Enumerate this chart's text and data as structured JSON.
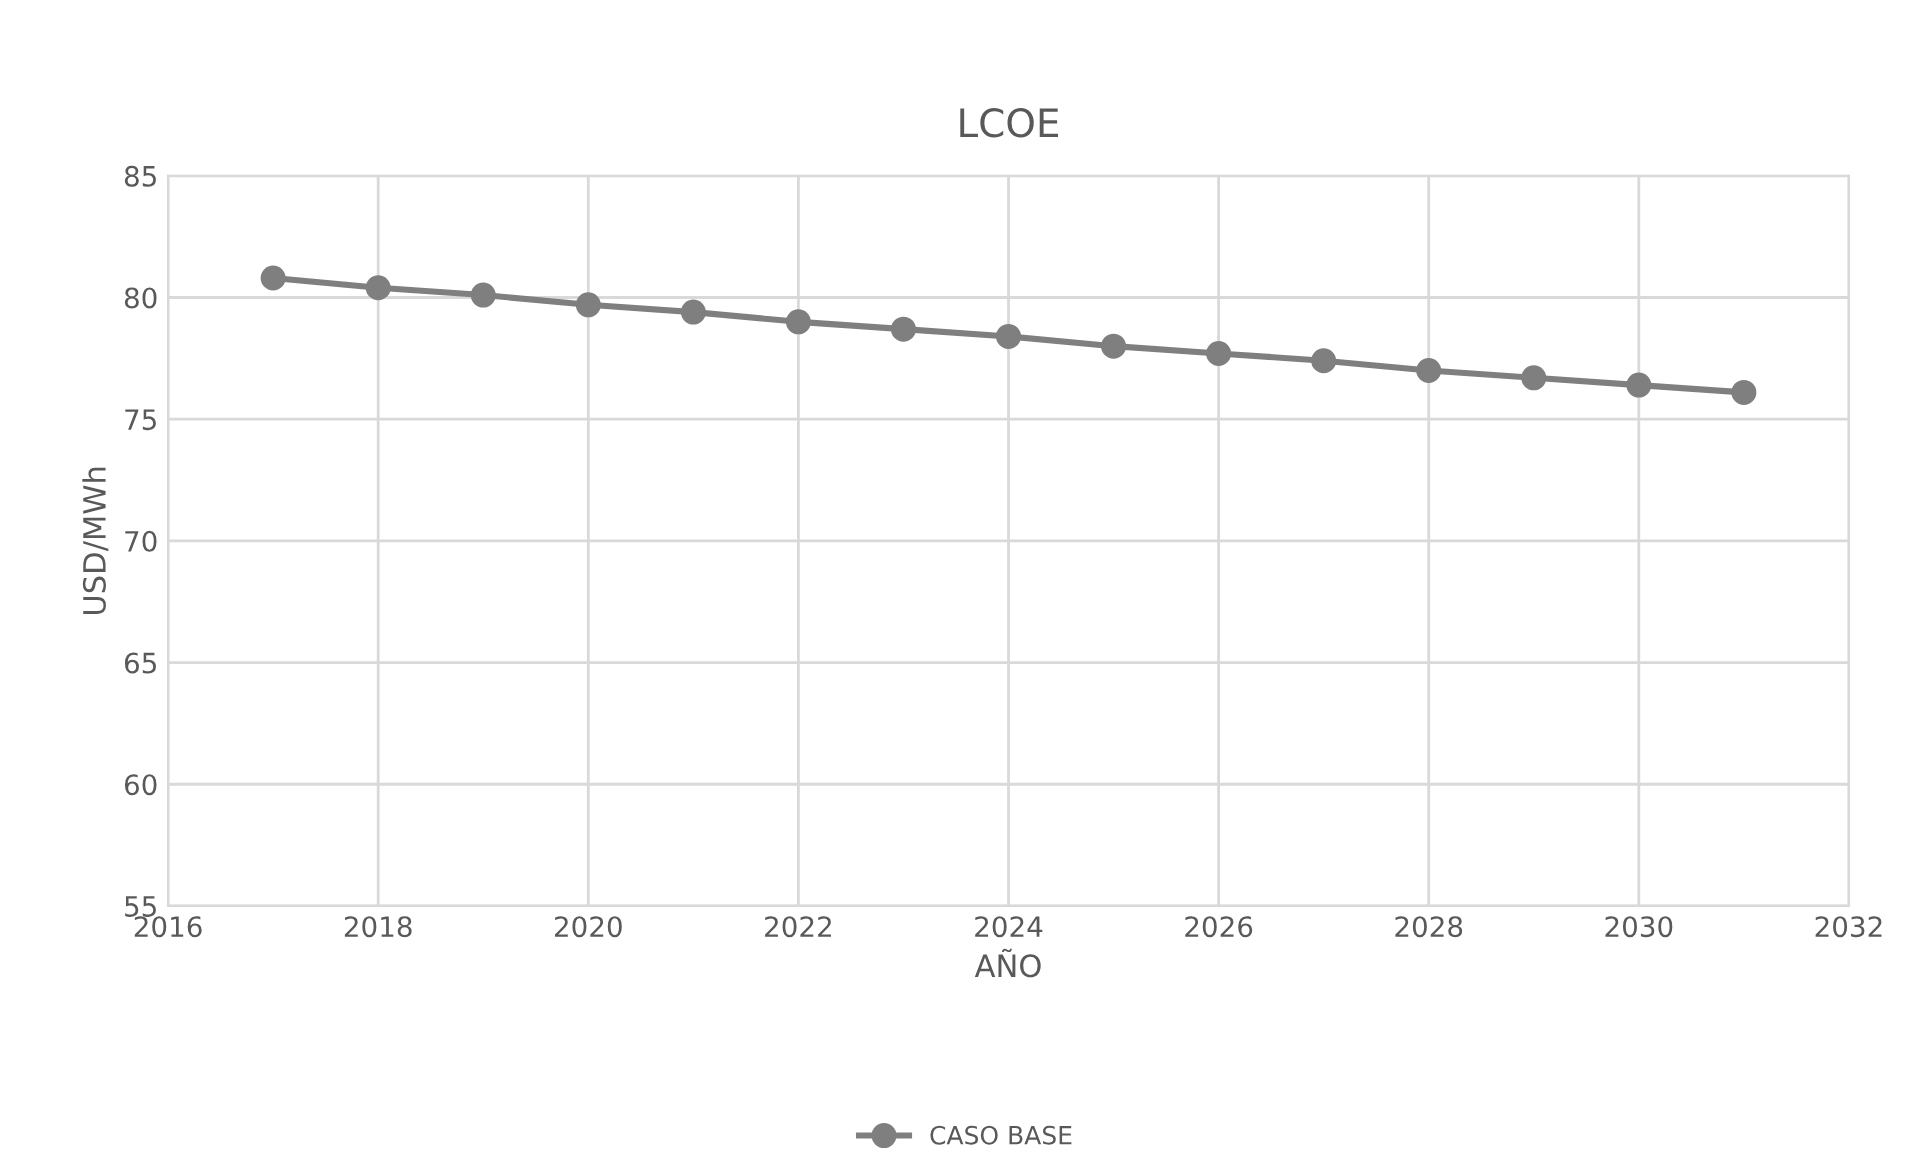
{
  "chart_data": {
    "type": "line",
    "title": "LCOE",
    "xlabel": "AÑO",
    "ylabel": "USD/MWh",
    "x": [
      2017,
      2018,
      2019,
      2020,
      2021,
      2022,
      2023,
      2024,
      2025,
      2026,
      2027,
      2028,
      2029,
      2030,
      2031
    ],
    "series": [
      {
        "name": "CASO BASE",
        "color": "#7f7f7f",
        "values": [
          80.8,
          80.4,
          80.1,
          79.7,
          79.4,
          79.0,
          78.7,
          78.4,
          78.0,
          77.7,
          77.4,
          77.0,
          76.7,
          76.4,
          76.1
        ]
      }
    ],
    "xlim": [
      2016,
      2032
    ],
    "xticks": [
      2016,
      2018,
      2020,
      2022,
      2024,
      2026,
      2028,
      2030,
      2032
    ],
    "ylim": [
      55,
      85
    ],
    "yticks": [
      55,
      60,
      65,
      70,
      75,
      80,
      85
    ],
    "grid": true,
    "legend": "bottom",
    "marker": "circle",
    "line_style": "solid"
  }
}
